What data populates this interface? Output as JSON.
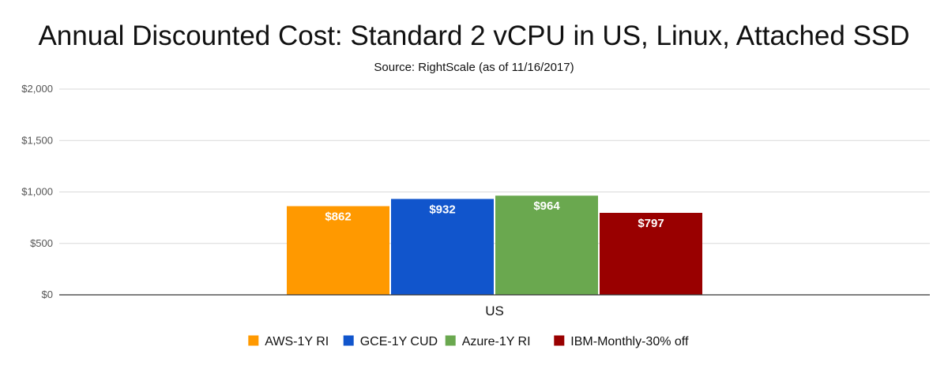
{
  "chart_data": {
    "type": "bar",
    "title": "Annual Discounted Cost: Standard 2 vCPU in US, Linux, Attached SSD",
    "subtitle": "Source: RightScale (as of 11/16/2017)",
    "categories": [
      "US"
    ],
    "series": [
      {
        "name": "AWS-1Y RI",
        "values": [
          862
        ],
        "label": "$862",
        "color": "#ff9900"
      },
      {
        "name": "GCE-1Y CUD",
        "values": [
          932
        ],
        "label": "$932",
        "color": "#1155cc"
      },
      {
        "name": "Azure-1Y RI",
        "values": [
          964
        ],
        "label": "$964",
        "color": "#6aa84f"
      },
      {
        "name": "IBM-Monthly-30% off",
        "values": [
          797
        ],
        "label": "$797",
        "color": "#990000"
      }
    ],
    "y_ticks": [
      {
        "value": 0,
        "label": "$0"
      },
      {
        "value": 500,
        "label": "$500"
      },
      {
        "value": 1000,
        "label": "$1,000"
      },
      {
        "value": 1500,
        "label": "$1,500"
      },
      {
        "value": 2000,
        "label": "$2,000"
      }
    ],
    "ylim": [
      0,
      2000
    ],
    "xlabel": "",
    "ylabel": "",
    "grid": true,
    "legend": "bottom"
  }
}
